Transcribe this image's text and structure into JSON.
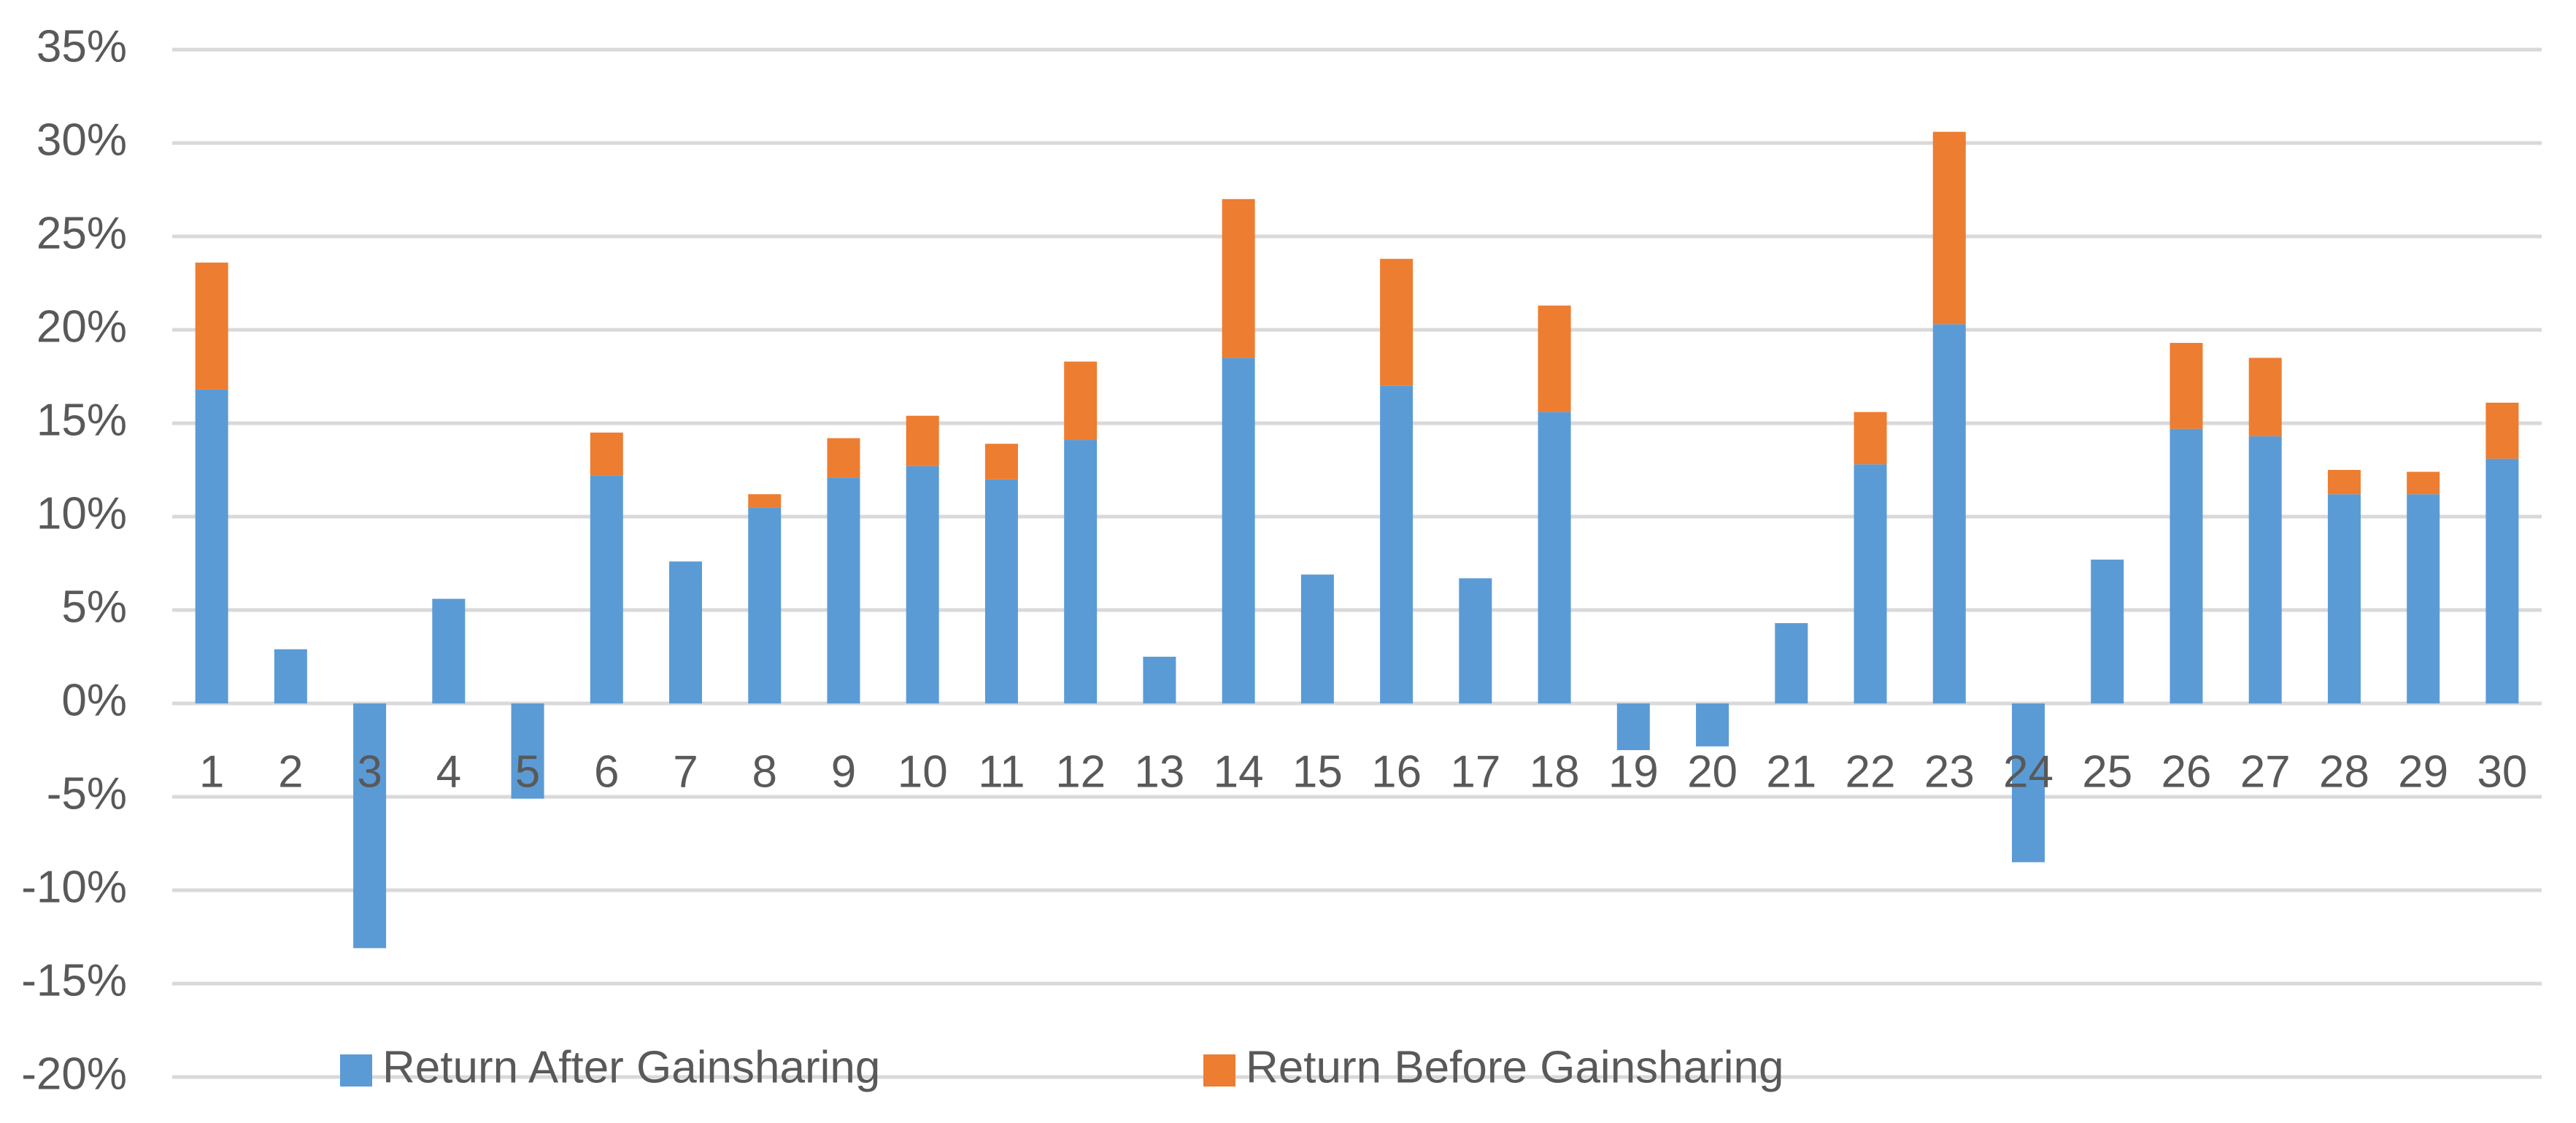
{
  "chart_data": {
    "type": "stacked_bar",
    "categories": [
      "1",
      "2",
      "3",
      "4",
      "5",
      "6",
      "7",
      "8",
      "9",
      "10",
      "11",
      "12",
      "13",
      "14",
      "15",
      "16",
      "17",
      "18",
      "19",
      "20",
      "21",
      "22",
      "23",
      "24",
      "25",
      "26",
      "27",
      "28",
      "29",
      "30"
    ],
    "series": [
      {
        "name": "Return After Gainsharing",
        "color": "#5b9bd5",
        "values": [
          16.8,
          2.9,
          -13.1,
          5.6,
          -5.1,
          12.2,
          7.6,
          10.5,
          12.1,
          12.7,
          12.0,
          14.1,
          2.5,
          18.5,
          6.9,
          17.0,
          6.7,
          15.6,
          -2.5,
          -2.3,
          4.3,
          12.8,
          20.3,
          -8.5,
          7.7,
          14.7,
          14.3,
          11.2,
          11.2,
          13.1
        ]
      },
      {
        "name": "Return Before Gainsharing",
        "color": "#ed7d31",
        "values": [
          6.8,
          0,
          0,
          0,
          0,
          2.3,
          0,
          0.7,
          2.1,
          2.7,
          1.9,
          4.2,
          0,
          8.5,
          0,
          6.8,
          0,
          5.7,
          0,
          0,
          0,
          2.8,
          10.3,
          0,
          0,
          4.6,
          4.2,
          1.3,
          1.2,
          3.0
        ]
      }
    ],
    "ylim": [
      -20,
      35
    ],
    "yticks": [
      {
        "value": -20,
        "label": "-20%"
      },
      {
        "value": -15,
        "label": "-15%"
      },
      {
        "value": -10,
        "label": "-10%"
      },
      {
        "value": -5,
        "label": "-5%"
      },
      {
        "value": 0,
        "label": "0%"
      },
      {
        "value": 5,
        "label": "5%"
      },
      {
        "value": 10,
        "label": "10%"
      },
      {
        "value": 15,
        "label": "15%"
      },
      {
        "value": 20,
        "label": "20%"
      },
      {
        "value": 25,
        "label": "25%"
      },
      {
        "value": 30,
        "label": "30%"
      },
      {
        "value": 35,
        "label": "35%"
      }
    ],
    "grid": true,
    "legend": "bottom"
  }
}
